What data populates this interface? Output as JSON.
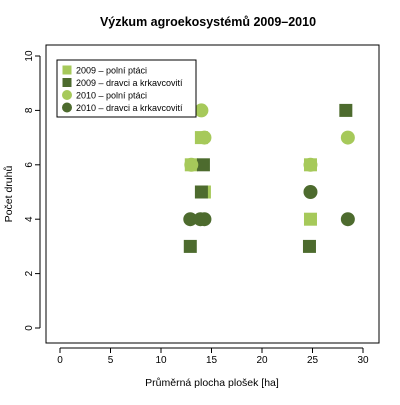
{
  "chart_data": {
    "type": "scatter",
    "title": "Výzkum agroekosystémů 2009–2010",
    "xlabel": "Průměrná plocha plošek [ha]",
    "ylabel": "Počet druhů",
    "xlim": [
      0,
      30
    ],
    "ylim": [
      0,
      10
    ],
    "x_ticks": [
      0,
      5,
      10,
      15,
      20,
      25,
      30
    ],
    "y_ticks": [
      0,
      2,
      4,
      6,
      8,
      10
    ],
    "grid": false,
    "legend_position": "top-left",
    "series": [
      {
        "name": "2009 – polní ptáci",
        "marker": "square",
        "color": "#a6c95a",
        "points": [
          [
            13.0,
            6
          ],
          [
            14.3,
            5
          ],
          [
            14.0,
            7
          ],
          [
            24.8,
            4
          ],
          [
            24.8,
            6
          ]
        ]
      },
      {
        "name": "2009 – dravci a krkavcovití",
        "marker": "square",
        "color": "#4d6b2e",
        "points": [
          [
            12.9,
            3
          ],
          [
            14.0,
            5
          ],
          [
            14.2,
            6
          ],
          [
            24.7,
            3
          ],
          [
            28.3,
            8
          ]
        ]
      },
      {
        "name": "2010 – polní ptáci",
        "marker": "circle",
        "color": "#a6c95a",
        "points": [
          [
            13.0,
            6
          ],
          [
            14.0,
            8
          ],
          [
            14.3,
            7
          ],
          [
            24.8,
            6
          ],
          [
            28.5,
            7
          ]
        ]
      },
      {
        "name": "2010 – dravci a krkavcovití",
        "marker": "circle",
        "color": "#4d6b2e",
        "points": [
          [
            12.9,
            4
          ],
          [
            13.9,
            4
          ],
          [
            14.3,
            4
          ],
          [
            24.8,
            5
          ],
          [
            28.5,
            4
          ]
        ]
      }
    ]
  }
}
